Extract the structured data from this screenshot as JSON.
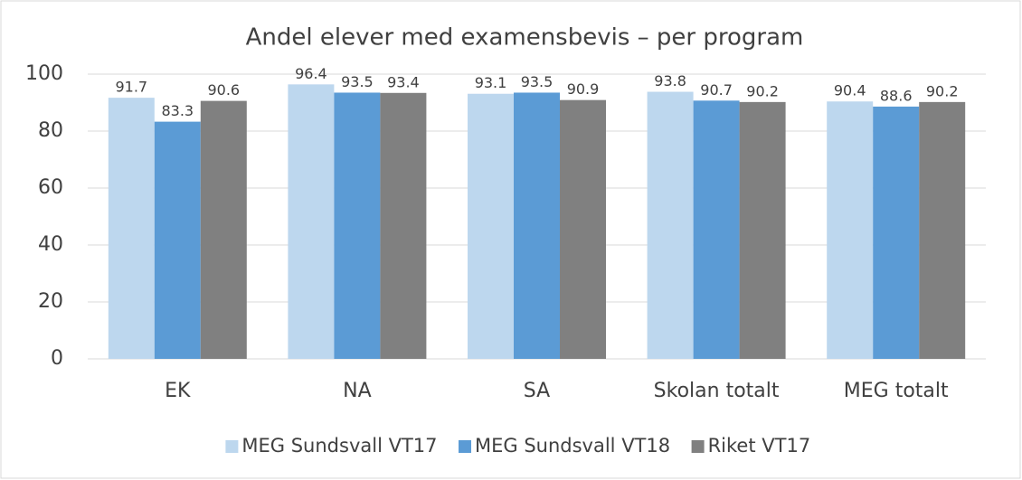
{
  "chart_data": {
    "type": "bar",
    "title": "Andel elever med examensbevis – per program",
    "categories": [
      "EK",
      "NA",
      "SA",
      "Skolan totalt",
      "MEG totalt"
    ],
    "series": [
      {
        "name": "MEG Sundsvall VT17",
        "color": "#bdd7ee",
        "values": [
          91.7,
          96.4,
          93.1,
          93.8,
          90.4
        ]
      },
      {
        "name": "MEG Sundsvall VT18",
        "color": "#5b9bd5",
        "values": [
          83.3,
          93.5,
          93.5,
          90.7,
          88.6
        ]
      },
      {
        "name": "Riket VT17",
        "color": "#808080",
        "values": [
          90.6,
          93.4,
          90.9,
          90.2,
          90.2
        ]
      }
    ],
    "ylim": [
      0,
      100
    ],
    "yticks": [
      0,
      20,
      40,
      60,
      80,
      100
    ],
    "grid": true,
    "legend": "bottom"
  }
}
